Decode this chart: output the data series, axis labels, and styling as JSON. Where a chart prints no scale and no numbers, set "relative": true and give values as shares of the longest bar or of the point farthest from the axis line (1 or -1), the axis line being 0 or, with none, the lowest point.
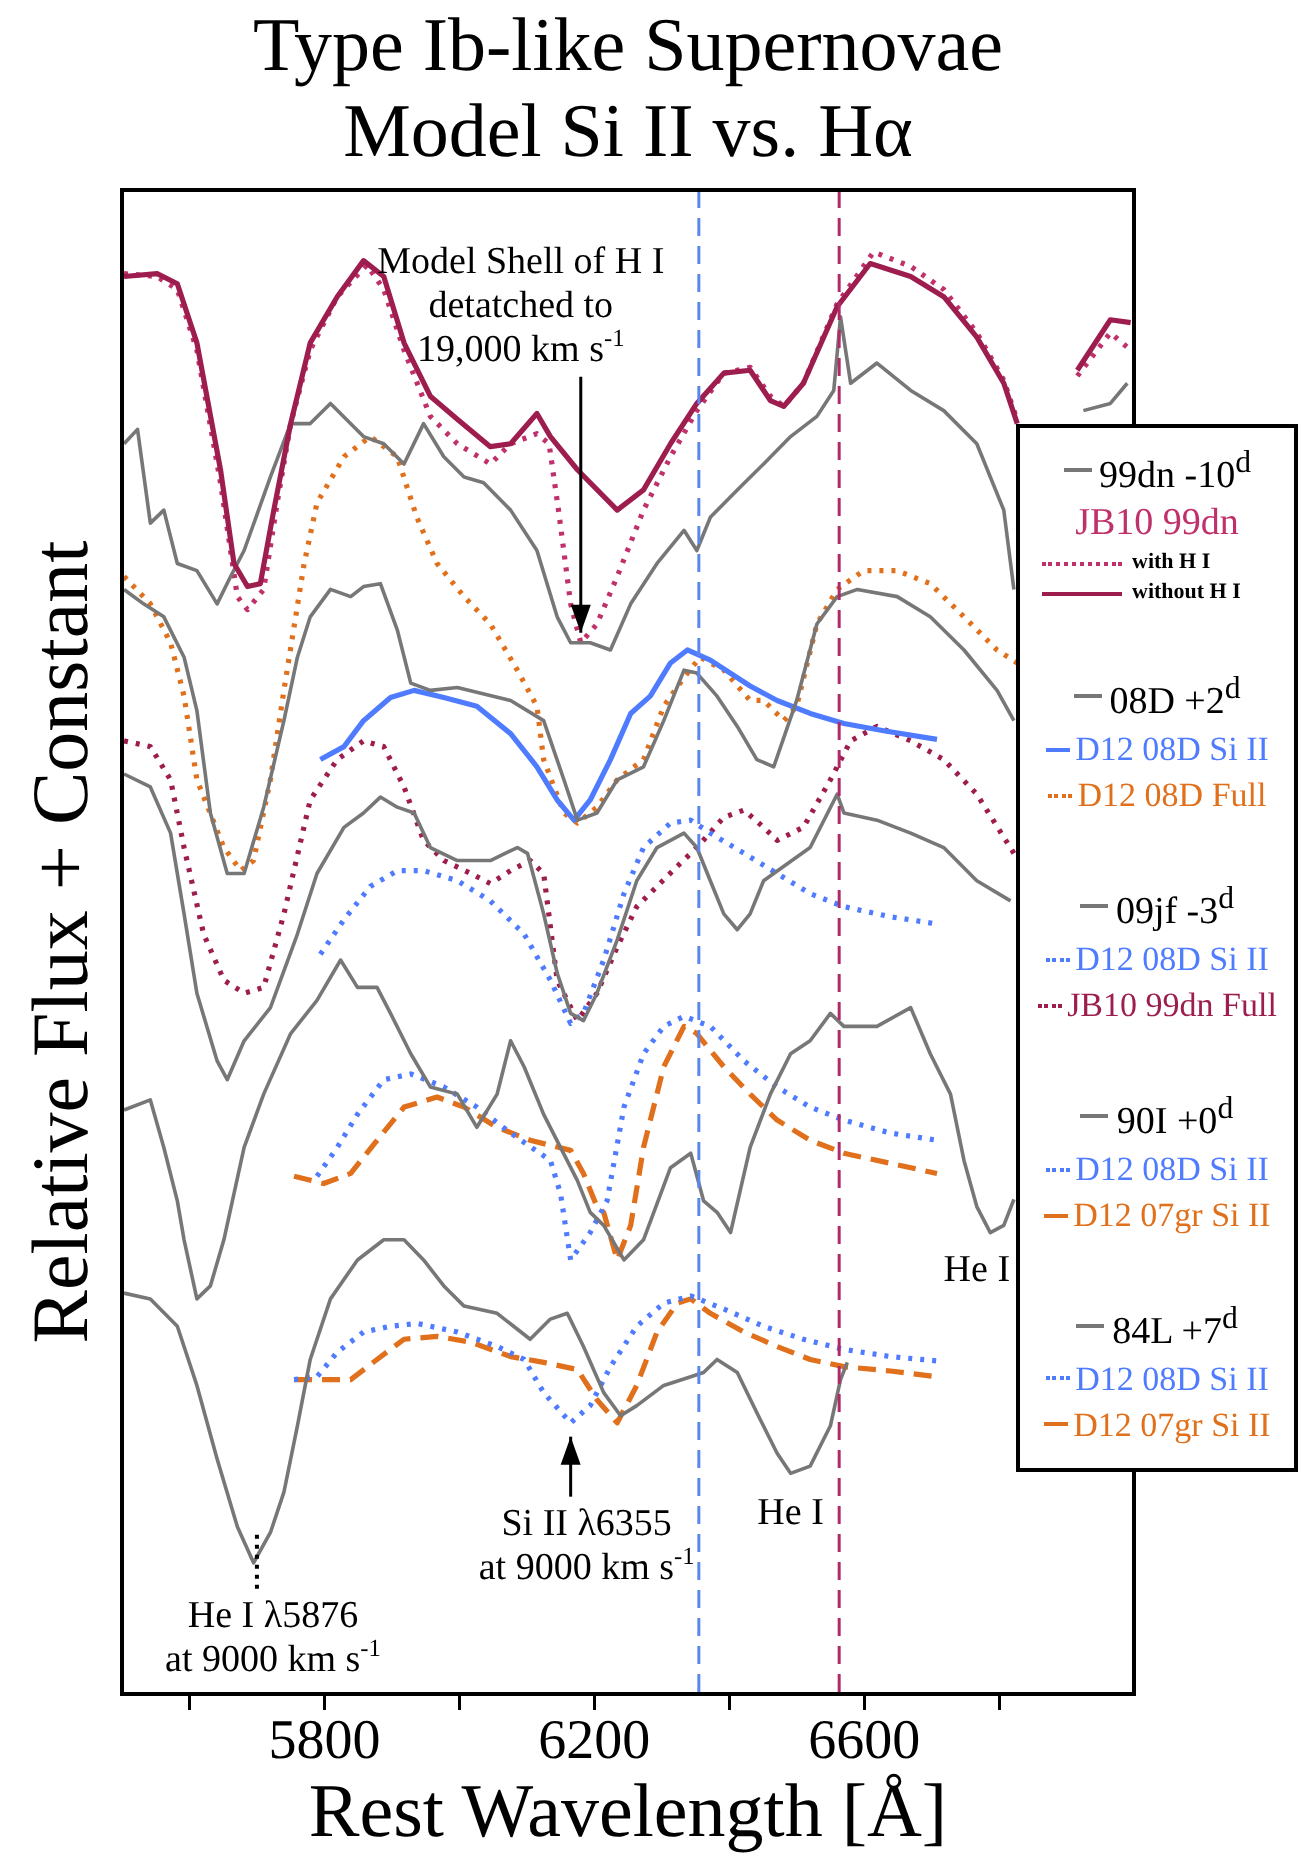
{
  "chart_data": {
    "type": "line",
    "title": "Type Ib-like Supernovae",
    "subtitle": "Model Si II vs. Hα",
    "xlabel": "Rest Wavelength [Å]",
    "ylabel": "Relative Flux + Constant",
    "legend_title": "JB10 99dn",
    "relative": true,
    "legend": "right",
    "xlim": [
      5500,
      7000
    ],
    "xticks": [
      {
        "value": 5600,
        "label": null
      },
      5800,
      {
        "value": 6000,
        "label": null
      },
      6200,
      {
        "value": 6400,
        "label": null
      },
      6600,
      {
        "value": 6800,
        "label": null
      }
    ],
    "ref_lines": [
      {
        "axis": "x",
        "value": 6355,
        "color": "#5b86f0",
        "line_style": "dashed"
      },
      {
        "axis": "x",
        "value": 6563,
        "color": "#b02a6a",
        "line_style": "dashed"
      }
    ],
    "annotations": [
      {
        "text": "Model Shell of H I\ndetatched to\n19,000 km s$^{-1}$",
        "x": 6180,
        "y": 0.729
      },
      {
        "text": "Si II λ6355\nat 9000 km s$^{-1}$",
        "x": 6165,
        "y": 0.184
      },
      {
        "text": "He I λ5876\nat 9000 km s$^{-1}$",
        "x": 5700,
        "y": 0.091
      },
      {
        "text": "He I",
        "x": 6491,
        "y": 0.153
      },
      {
        "text": "He I",
        "x": 6767,
        "y": 0.338
      }
    ],
    "series": [
      {
        "name": "99dn -10$^{d}$",
        "color": "#777777",
        "line_style": "solid",
        "x": [
          5503,
          5523,
          5542,
          5562,
          5582,
          5611,
          5641,
          5661,
          5681,
          5720,
          5750,
          5779,
          5809,
          5858,
          5888,
          5918,
          5947,
          5977,
          6007,
          6036,
          6076,
          6115,
          6145,
          6165,
          6194,
          6224,
          6254,
          6293,
          6333,
          6352,
          6372,
          6412,
          6451,
          6491,
          6530,
          6555,
          6565,
          6580,
          6619,
          6669,
          6718,
          6767,
          6807,
          6822,
          6870,
          6925,
          6965,
          6990
        ],
        "values": [
          0.867,
          0.877,
          0.812,
          0.821,
          0.784,
          0.779,
          0.756,
          0.775,
          0.793,
          0.844,
          0.881,
          0.881,
          0.895,
          0.872,
          0.867,
          0.853,
          0.881,
          0.858,
          0.844,
          0.84,
          0.821,
          0.793,
          0.747,
          0.729,
          0.729,
          0.724,
          0.756,
          0.784,
          0.807,
          0.793,
          0.816,
          0.835,
          0.853,
          0.872,
          0.886,
          0.904,
          0.955,
          0.909,
          0.923,
          0.904,
          0.89,
          0.867,
          0.821,
          0.766,
          null,
          0.89,
          0.895,
          0.909
        ]
      },
      {
        "name": "with H I",
        "color": "#c0306a",
        "line_style": "dotted",
        "x": [
          5503,
          5552,
          5582,
          5611,
          5646,
          5671,
          5686,
          5710,
          5730,
          5750,
          5779,
          5819,
          5863,
          5888,
          5918,
          5957,
          5997,
          6046,
          6076,
          6115,
          6133,
          6147,
          6165,
          6180,
          6204,
          6234,
          6273,
          6313,
          6352,
          6392,
          6431,
          6461,
          6481,
          6510,
          6560,
          6614,
          6669,
          6718,
          6767,
          6807,
          6827,
          6870,
          6916,
          6965,
          6995
        ],
        "values": [
          0.985,
          0.983,
          0.974,
          0.932,
          0.84,
          0.761,
          0.752,
          0.766,
          0.826,
          0.881,
          0.932,
          0.969,
          0.991,
          0.974,
          0.932,
          0.886,
          0.867,
          0.853,
          0.867,
          0.874,
          0.867,
          0.821,
          0.756,
          0.729,
          0.742,
          0.775,
          0.821,
          0.858,
          0.89,
          0.916,
          0.92,
          0.9,
          0.893,
          0.909,
          0.964,
          1,
          0.99,
          0.974,
          0.944,
          0.911,
          0.883,
          null,
          0.914,
          0.944,
          0.932
        ]
      },
      {
        "name": "without H I",
        "color": "#9e1d4f",
        "line_style": "solid",
        "x": [
          5503,
          5552,
          5582,
          5611,
          5646,
          5666,
          5686,
          5705,
          5725,
          5750,
          5779,
          5819,
          5858,
          5888,
          5918,
          5957,
          5997,
          6046,
          6076,
          6115,
          6135,
          6175,
          6234,
          6273,
          6313,
          6352,
          6392,
          6431,
          6461,
          6481,
          6510,
          6560,
          6609,
          6669,
          6718,
          6767,
          6807,
          6827,
          6870,
          6916,
          6965,
          6995
        ],
        "values": [
          0.983,
          0.985,
          0.978,
          0.937,
          0.849,
          0.784,
          0.768,
          0.77,
          0.821,
          0.881,
          0.937,
          0.969,
          0.994,
          0.983,
          0.937,
          0.9,
          0.884,
          0.865,
          0.867,
          0.888,
          0.872,
          0.849,
          0.821,
          0.835,
          0.867,
          0.895,
          0.916,
          0.918,
          0.897,
          0.893,
          0.909,
          0.962,
          0.992,
          0.983,
          0.969,
          0.941,
          0.909,
          0.881,
          null,
          0.918,
          0.953,
          0.951
        ]
      },
      {
        "name": "08D +2$^{d}$",
        "color": "#777777",
        "line_style": "solid",
        "x": [
          5503,
          5532,
          5562,
          5592,
          5611,
          5631,
          5656,
          5681,
          5710,
          5740,
          5760,
          5779,
          5809,
          5839,
          5858,
          5883,
          5908,
          5928,
          5957,
          5997,
          6076,
          6125,
          6155,
          6175,
          6204,
          6234,
          6273,
          6303,
          6333,
          6352,
          6382,
          6412,
          6441,
          6466,
          6500,
          6530,
          6560,
          6590,
          6649,
          6698,
          6748,
          6797,
          6822
        ],
        "values": [
          0.766,
          0.756,
          0.747,
          0.719,
          0.682,
          0.611,
          0.569,
          0.569,
          0.615,
          0.675,
          0.719,
          0.747,
          0.766,
          0.761,
          0.768,
          0.77,
          0.738,
          0.701,
          0.696,
          0.698,
          0.689,
          0.675,
          0.634,
          0.606,
          0.611,
          0.634,
          0.643,
          0.675,
          0.71,
          0.708,
          0.692,
          0.671,
          0.648,
          0.643,
          0.689,
          0.742,
          0.761,
          0.766,
          0.761,
          0.747,
          0.724,
          0.696,
          0.675
        ]
      },
      {
        "name": "D12 08D Si II",
        "color": "#4f7cff",
        "line_style": "solid",
        "x": [
          5794,
          5829,
          5858,
          5898,
          5933,
          5977,
          6026,
          6076,
          6115,
          6145,
          6170,
          6194,
          6224,
          6254,
          6283,
          6313,
          6338,
          6372,
          6431,
          6471,
          6520,
          6570,
          6629,
          6708
        ],
        "values": [
          0.648,
          0.657,
          0.675,
          0.691,
          0.696,
          0.691,
          0.685,
          0.666,
          0.643,
          0.62,
          0.606,
          0.62,
          0.648,
          0.68,
          0.692,
          0.715,
          0.724,
          0.717,
          0.699,
          0.689,
          0.68,
          0.673,
          0.668,
          0.662
        ]
      },
      {
        "name": "D12 08D Full",
        "color": "#e0701c",
        "line_style": "dotted",
        "x": [
          5503,
          5542,
          5572,
          5592,
          5611,
          5651,
          5676,
          5695,
          5720,
          5740,
          5770,
          5789,
          5829,
          5868,
          5908,
          5937,
          5967,
          6007,
          6046,
          6086,
          6115,
          6125,
          6155,
          6175,
          6204,
          6234,
          6273,
          6303,
          6333,
          6357,
          6392,
          6431,
          6451,
          6481,
          6500,
          6530,
          6560,
          6599,
          6649,
          6698,
          6748,
          6797,
          6827
        ],
        "values": [
          0.775,
          0.756,
          0.729,
          0.692,
          0.634,
          0.587,
          0.571,
          0.578,
          0.634,
          0.696,
          0.784,
          0.826,
          0.858,
          0.872,
          0.858,
          0.816,
          0.784,
          0.761,
          0.742,
          0.71,
          0.685,
          0.648,
          0.611,
          0.604,
          0.615,
          0.634,
          0.648,
          0.685,
          0.705,
          0.719,
          0.71,
          0.689,
          0.689,
          0.675,
          0.685,
          0.742,
          0.766,
          0.779,
          0.779,
          0.77,
          0.747,
          0.724,
          0.715
        ]
      },
      {
        "name": "09jf -3$^{d}$",
        "color": "#777777",
        "line_style": "solid",
        "x": [
          5503,
          5542,
          5572,
          5592,
          5611,
          5641,
          5656,
          5681,
          5720,
          5760,
          5789,
          5829,
          5858,
          5883,
          5908,
          5933,
          5957,
          5997,
          6046,
          6086,
          6101,
          6125,
          6145,
          6165,
          6184,
          6204,
          6234,
          6263,
          6293,
          6333,
          6352,
          6372,
          6392,
          6412,
          6431,
          6451,
          6481,
          6520,
          6560,
          6570,
          6619,
          6669,
          6718,
          6767,
          6817
        ],
        "values": [
          0.638,
          0.629,
          0.597,
          0.541,
          0.486,
          0.439,
          0.426,
          0.453,
          0.476,
          0.527,
          0.569,
          0.601,
          0.611,
          0.622,
          0.615,
          0.611,
          0.587,
          0.578,
          0.578,
          0.587,
          0.583,
          0.541,
          0.5,
          0.472,
          0.467,
          0.486,
          0.523,
          0.564,
          0.587,
          0.597,
          0.587,
          0.564,
          0.541,
          0.53,
          0.541,
          0.564,
          0.574,
          0.587,
          0.624,
          0.611,
          0.606,
          0.597,
          0.587,
          0.564,
          0.55
        ]
      },
      {
        "name": "D12 08D Si II",
        "color": "#4f7cff",
        "line_style": "dotted",
        "x": [
          5794,
          5829,
          5868,
          5908,
          5947,
          5997,
          6046,
          6096,
          6135,
          6165,
          6184,
          6214,
          6244,
          6273,
          6313,
          6343,
          6372,
          6422,
          6471,
          6520,
          6570,
          6639,
          6708
        ],
        "values": [
          0.513,
          0.537,
          0.56,
          0.571,
          0.571,
          0.564,
          0.55,
          0.527,
          0.495,
          0.465,
          0.472,
          0.509,
          0.555,
          0.587,
          0.604,
          0.606,
          0.597,
          0.583,
          0.569,
          0.555,
          0.546,
          0.539,
          0.534
        ]
      },
      {
        "name": "JB10 99dn Full",
        "color": "#9e1d4f",
        "line_style": "dotted",
        "x": [
          5503,
          5542,
          5572,
          5592,
          5621,
          5651,
          5681,
          5710,
          5740,
          5779,
          5819,
          5858,
          5888,
          5918,
          5947,
          5977,
          6017,
          6046,
          6076,
          6105,
          6125,
          6145,
          6175,
          6204,
          6234,
          6263,
          6293,
          6323,
          6352,
          6392,
          6422,
          6451,
          6471,
          6510,
          6550,
          6580,
          6619,
          6669,
          6718,
          6767,
          6822
        ],
        "values": [
          0.661,
          0.657,
          0.634,
          0.587,
          0.527,
          0.495,
          0.486,
          0.49,
          0.541,
          0.62,
          0.648,
          0.661,
          0.657,
          0.629,
          0.592,
          0.578,
          0.569,
          0.562,
          0.571,
          0.578,
          0.569,
          0.495,
          0.467,
          0.486,
          0.518,
          0.546,
          0.56,
          0.574,
          0.587,
          0.608,
          0.613,
          0.601,
          0.592,
          0.601,
          0.634,
          0.661,
          0.671,
          0.661,
          0.648,
          0.624,
          0.583
        ]
      },
      {
        "name": "90I +0$^{d}$",
        "color": "#777777",
        "line_style": "solid",
        "x": [
          5503,
          5542,
          5562,
          5582,
          5592,
          5611,
          5631,
          5651,
          5681,
          5710,
          5750,
          5789,
          5824,
          5849,
          5878,
          5898,
          5928,
          5957,
          5997,
          6026,
          6056,
          6076,
          6096,
          6125,
          6175,
          6194,
          6214,
          6244,
          6273,
          6313,
          6343,
          6362,
          6382,
          6402,
          6431,
          6461,
          6491,
          6520,
          6550,
          6570,
          6619,
          6669,
          6698,
          6728,
          6748,
          6767,
          6787,
          6807,
          6822
        ],
        "values": [
          0.405,
          0.412,
          0.379,
          0.342,
          0.315,
          0.274,
          0.283,
          0.315,
          0.379,
          0.416,
          0.458,
          0.481,
          0.509,
          0.49,
          0.49,
          0.472,
          0.444,
          0.421,
          0.416,
          0.393,
          0.416,
          0.453,
          0.435,
          0.402,
          0.356,
          0.334,
          0.325,
          0.301,
          0.315,
          0.365,
          0.375,
          0.342,
          0.334,
          0.32,
          0.379,
          0.416,
          0.444,
          0.453,
          0.472,
          0.463,
          0.463,
          0.476,
          0.444,
          0.416,
          0.37,
          0.338,
          0.32,
          0.325,
          0.343
        ]
      },
      {
        "name": "D12 08D Si II",
        "color": "#4f7cff",
        "line_style": "dotted",
        "x": [
          5789,
          5819,
          5849,
          5888,
          5928,
          5977,
          6026,
          6076,
          6135,
          6150,
          6165,
          6194,
          6219,
          6244,
          6273,
          6303,
          6333,
          6372,
          6422,
          6471,
          6520,
          6570,
          6639,
          6708
        ],
        "values": [
          0.359,
          0.379,
          0.402,
          0.426,
          0.43,
          0.421,
          0.407,
          0.389,
          0.37,
          0.347,
          0.301,
          0.32,
          0.342,
          0.407,
          0.444,
          0.463,
          0.47,
          0.463,
          0.439,
          0.421,
          0.407,
          0.398,
          0.389,
          0.384
        ]
      },
      {
        "name": "D12 07gr Si II",
        "color": "#e0701c",
        "line_style": "dashed",
        "x": [
          5755,
          5799,
          5839,
          5878,
          5918,
          5967,
          6007,
          6056,
          6105,
          6165,
          6184,
          6204,
          6214,
          6234,
          6254,
          6273,
          6303,
          6333,
          6352,
          6392,
          6431,
          6471,
          6520,
          6570,
          6639,
          6708
        ],
        "values": [
          0.359,
          0.354,
          0.361,
          0.384,
          0.407,
          0.414,
          0.407,
          0.393,
          0.384,
          0.377,
          0.361,
          0.338,
          0.334,
          0.301,
          0.325,
          0.379,
          0.435,
          0.463,
          0.458,
          0.435,
          0.416,
          0.398,
          0.384,
          0.375,
          0.368,
          0.361
        ]
      },
      {
        "name": "84L +7$^{d}$",
        "color": "#777777",
        "line_style": "solid",
        "x": [
          5503,
          5542,
          5582,
          5611,
          5641,
          5671,
          5695,
          5720,
          5740,
          5760,
          5779,
          5809,
          5849,
          5888,
          5918,
          5947,
          5977,
          6007,
          6056,
          6105,
          6135,
          6160,
          6184,
          6214,
          6239,
          6263,
          6303,
          6343,
          6362,
          6382,
          6412,
          6441,
          6471,
          6491,
          6520,
          6550,
          6565,
          6575
        ],
        "values": [
          0.278,
          0.274,
          0.255,
          0.214,
          0.163,
          0.116,
          0.091,
          0.112,
          0.14,
          0.186,
          0.232,
          0.274,
          0.301,
          0.315,
          0.315,
          0.301,
          0.283,
          0.269,
          0.264,
          0.246,
          0.26,
          0.264,
          0.241,
          0.209,
          0.193,
          0.2,
          0.214,
          0.22,
          0.223,
          0.232,
          0.223,
          0.195,
          0.167,
          0.153,
          0.158,
          0.186,
          0.218,
          0.23
        ]
      },
      {
        "name": "D12 08D Si II",
        "color": "#4f7cff",
        "line_style": "dotted",
        "x": [
          5755,
          5789,
          5819,
          5858,
          5898,
          5937,
          5997,
          6056,
          6096,
          6125,
          6165,
          6194,
          6224,
          6263,
          6303,
          6343,
          6392,
          6451,
          6510,
          6570,
          6639,
          6708
        ],
        "values": [
          0.218,
          0.22,
          0.237,
          0.251,
          0.255,
          0.257,
          0.251,
          0.241,
          0.232,
          0.209,
          0.188,
          0.2,
          0.227,
          0.255,
          0.271,
          0.276,
          0.267,
          0.255,
          0.246,
          0.239,
          0.234,
          0.231
        ]
      },
      {
        "name": "D12 07gr Si II",
        "color": "#e0701c",
        "line_style": "dashed",
        "x": [
          5755,
          5799,
          5839,
          5878,
          5918,
          5967,
          6017,
          6076,
          6125,
          6175,
          6204,
          6234,
          6263,
          6293,
          6323,
          6343,
          6372,
          6422,
          6471,
          6520,
          6570,
          6639,
          6708
        ],
        "values": [
          0.218,
          0.218,
          0.218,
          0.232,
          0.246,
          0.248,
          0.244,
          0.234,
          0.23,
          0.225,
          0.204,
          0.188,
          0.214,
          0.251,
          0.271,
          0.274,
          0.264,
          0.251,
          0.241,
          0.232,
          0.227,
          0.224,
          0.22
        ]
      }
    ]
  }
}
